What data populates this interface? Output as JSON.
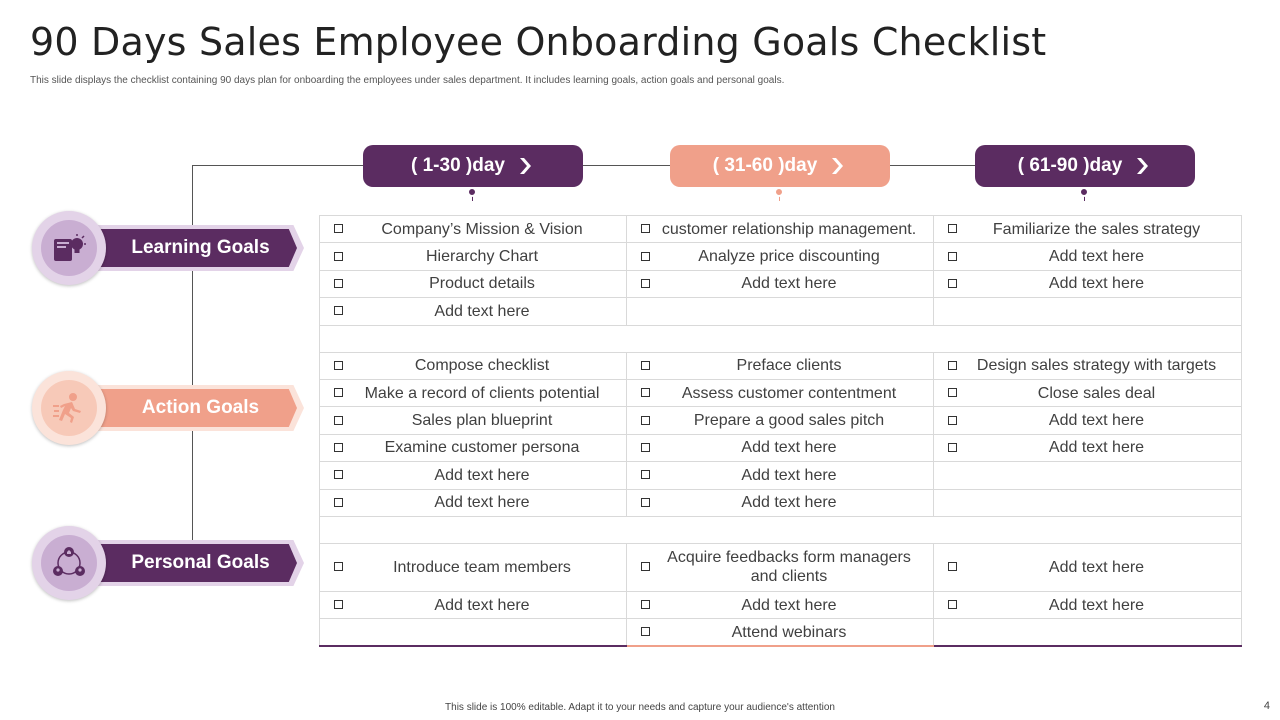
{
  "header": {
    "title": "90 Days Sales Employee Onboarding Goals Checklist",
    "subtitle": "This slide displays the checklist containing  90 days  plan for onboarding the employees under sales department.  It includes learning goals, action goals and personal goals."
  },
  "phases": [
    "( 1-30 )day",
    "( 31-60 )day",
    "( 61-90 )day"
  ],
  "categories": {
    "learning": {
      "label": "Learning Goals",
      "icon": "lightbulb-book-icon"
    },
    "action": {
      "label": "Action Goals",
      "icon": "running-person-icon"
    },
    "personal": {
      "label": "Personal Goals",
      "icon": "team-network-icon"
    }
  },
  "learning_rows": [
    [
      "Company’s Mission & Vision",
      "customer relationship management.",
      "Familiarize the sales strategy"
    ],
    [
      "Hierarchy Chart",
      "Analyze price discounting",
      "Add text here"
    ],
    [
      "Product details",
      "Add text here",
      "Add text here"
    ],
    [
      "Add text here",
      "",
      ""
    ]
  ],
  "action_rows": [
    [
      "Compose checklist",
      "Preface clients",
      "Design sales strategy with targets"
    ],
    [
      "Make a record of clients potential",
      "Assess customer contentment",
      "Close sales deal"
    ],
    [
      "Sales plan blueprint",
      "Prepare a good sales pitch",
      "Add text here"
    ],
    [
      "Examine customer persona",
      "Add text here",
      "Add text here"
    ],
    [
      "Add text here",
      "Add text here",
      ""
    ],
    [
      "Add text here",
      "Add text here",
      ""
    ]
  ],
  "personal_rows": [
    [
      "Introduce  team members",
      "Acquire feedbacks form managers and clients",
      "Add text here"
    ],
    [
      "Add text here",
      "Add text here",
      "Add text here"
    ],
    [
      "",
      "Attend webinars",
      ""
    ]
  ],
  "colors": {
    "purple": "#5b2c61",
    "salmon": "#f0a08a",
    "lavender": "#e3d3e8",
    "peach": "#fbe3da"
  },
  "footer": {
    "note": "This slide is 100% editable.  Adapt it to your needs and capture your audience's attention",
    "page": "4"
  }
}
